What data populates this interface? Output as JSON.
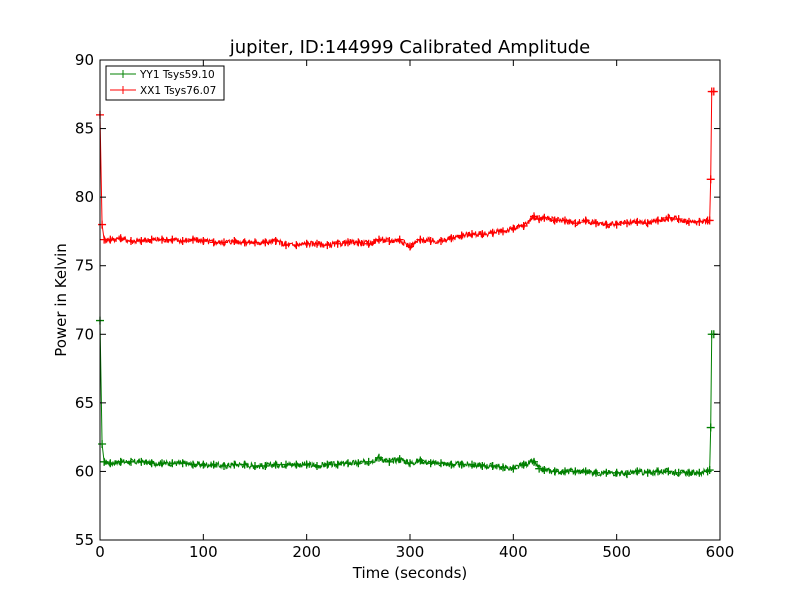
{
  "chart_data": {
    "type": "line",
    "title": "jupiter, ID:144999 Calibrated Amplitude",
    "xlabel": "Time (seconds)",
    "ylabel": "Power in Kelvin",
    "xlim": [
      0,
      600
    ],
    "ylim": [
      55,
      90
    ],
    "xticks": [
      0,
      100,
      200,
      300,
      400,
      500,
      600
    ],
    "yticks": [
      55,
      60,
      65,
      70,
      75,
      80,
      85,
      90
    ],
    "grid": false,
    "legend_position": "top-left",
    "series": [
      {
        "name": "YY1 Tsys59.10",
        "color": "#008000",
        "marker": "+",
        "x": [
          0,
          2,
          4,
          10,
          20,
          30,
          40,
          50,
          60,
          70,
          80,
          90,
          100,
          110,
          120,
          130,
          140,
          150,
          160,
          170,
          180,
          190,
          200,
          210,
          220,
          230,
          240,
          250,
          260,
          270,
          280,
          290,
          300,
          310,
          320,
          330,
          340,
          350,
          360,
          370,
          380,
          390,
          400,
          410,
          420,
          425,
          430,
          440,
          450,
          460,
          470,
          480,
          490,
          500,
          510,
          520,
          530,
          540,
          550,
          560,
          570,
          580,
          588,
          590,
          591,
          592,
          594
        ],
        "y": [
          71.0,
          62.0,
          60.7,
          60.6,
          60.7,
          60.7,
          60.7,
          60.6,
          60.6,
          60.6,
          60.6,
          60.5,
          60.5,
          60.5,
          60.4,
          60.5,
          60.5,
          60.4,
          60.4,
          60.5,
          60.5,
          60.5,
          60.5,
          60.4,
          60.5,
          60.5,
          60.6,
          60.6,
          60.7,
          61.0,
          60.7,
          60.9,
          60.6,
          60.8,
          60.6,
          60.6,
          60.5,
          60.5,
          60.5,
          60.4,
          60.4,
          60.3,
          60.2,
          60.5,
          60.7,
          60.2,
          60.1,
          60.0,
          60.0,
          60.0,
          60.0,
          59.9,
          59.9,
          59.9,
          59.8,
          60.0,
          59.9,
          60.0,
          60.0,
          59.9,
          59.9,
          59.9,
          60.0,
          60.1,
          63.2,
          70.0,
          70.0
        ]
      },
      {
        "name": "XX1 Tsys76.07",
        "color": "#ff0000",
        "marker": "+",
        "x": [
          0,
          2,
          4,
          10,
          20,
          30,
          40,
          50,
          60,
          70,
          80,
          90,
          100,
          110,
          120,
          130,
          140,
          150,
          160,
          170,
          180,
          190,
          200,
          210,
          220,
          230,
          240,
          250,
          260,
          270,
          280,
          290,
          300,
          310,
          320,
          330,
          340,
          350,
          360,
          370,
          380,
          390,
          400,
          410,
          420,
          425,
          430,
          440,
          450,
          460,
          470,
          480,
          490,
          500,
          510,
          520,
          530,
          540,
          550,
          560,
          570,
          580,
          588,
          590,
          591,
          592,
          594
        ],
        "y": [
          86.0,
          78.0,
          76.9,
          76.9,
          77.0,
          76.8,
          76.8,
          76.9,
          76.9,
          76.9,
          76.8,
          76.9,
          76.8,
          76.7,
          76.7,
          76.8,
          76.7,
          76.7,
          76.7,
          76.8,
          76.5,
          76.5,
          76.6,
          76.6,
          76.5,
          76.6,
          76.7,
          76.7,
          76.6,
          76.9,
          76.8,
          76.9,
          76.4,
          76.9,
          76.8,
          76.8,
          77.0,
          77.2,
          77.3,
          77.3,
          77.4,
          77.5,
          77.7,
          77.9,
          78.6,
          78.4,
          78.5,
          78.3,
          78.3,
          78.1,
          78.3,
          78.1,
          78.0,
          78.0,
          78.1,
          78.2,
          78.1,
          78.3,
          78.5,
          78.4,
          78.2,
          78.2,
          78.3,
          78.3,
          81.3,
          87.7,
          87.7
        ]
      }
    ]
  }
}
